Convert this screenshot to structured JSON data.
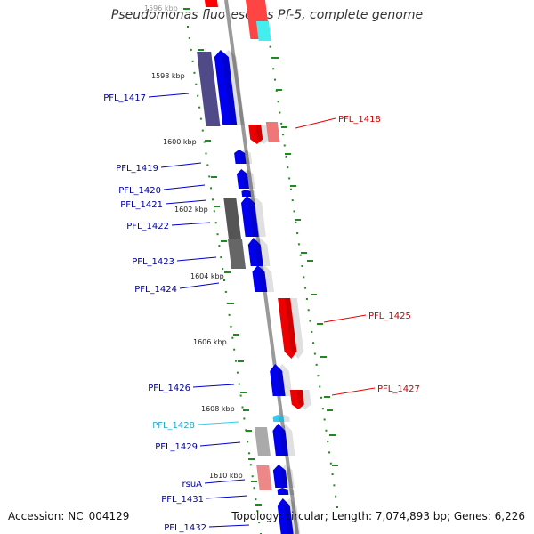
{
  "title": "Pseudomonas fluorescens Pf-5, complete genome",
  "footer": {
    "accession": "Accession: NC_004129",
    "summary": "Topology: circular; Length: 7,074,893 bp; Genes: 6,226"
  },
  "colors": {
    "forward_gene": "#0000ee",
    "reverse_gene": "#ee0000",
    "highlight_gene": "#33ccee",
    "backbone": "#999999",
    "tick": "#228822",
    "forward_label": "#000099",
    "reverse_label": "#cc0000",
    "highlight_label": "#22aacc"
  },
  "ticks": [
    "1596 kbp",
    "1598 kbp",
    "1600 kbp",
    "1602 kbp",
    "1604 kbp",
    "1606 kbp",
    "1608 kbp",
    "1610 kbp"
  ],
  "genes": [
    {
      "label": "PFL_1417",
      "strand": "forward"
    },
    {
      "label": "PFL_1418",
      "strand": "reverse"
    },
    {
      "label": "PFL_1419",
      "strand": "forward"
    },
    {
      "label": "PFL_1420",
      "strand": "forward"
    },
    {
      "label": "PFL_1421",
      "strand": "forward"
    },
    {
      "label": "PFL_1422",
      "strand": "forward"
    },
    {
      "label": "PFL_1423",
      "strand": "forward"
    },
    {
      "label": "PFL_1424",
      "strand": "forward"
    },
    {
      "label": "PFL_1425",
      "strand": "reverse"
    },
    {
      "label": "PFL_1426",
      "strand": "forward"
    },
    {
      "label": "PFL_1427",
      "strand": "reverse"
    },
    {
      "label": "PFL_1428",
      "strand": "forward",
      "highlight": true
    },
    {
      "label": "PFL_1429",
      "strand": "forward"
    },
    {
      "label": "rsuA",
      "strand": "forward"
    },
    {
      "label": "PFL_1431",
      "strand": "forward"
    },
    {
      "label": "PFL_1432",
      "strand": "forward"
    }
  ]
}
